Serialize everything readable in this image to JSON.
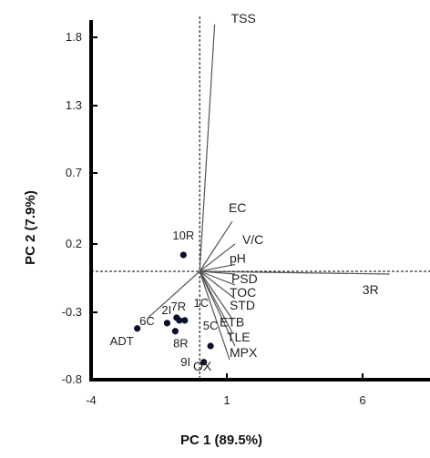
{
  "chart_data": {
    "type": "scatter",
    "title": "",
    "xlabel": "PC 1 (89.5%)",
    "ylabel": "PC 2 (7.9%)",
    "xlim": [
      -4,
      10
    ],
    "ylim": [
      -0.8,
      2.0
    ],
    "xticks": [
      -4,
      1,
      6
    ],
    "xtick_labels": [
      "-4",
      "1",
      "6"
    ],
    "yticks": [
      -0.8,
      -0.3,
      0.2,
      0.7,
      1.3,
      1.8
    ],
    "ytick_labels": [
      "-0.8",
      "-0.3",
      "0.2",
      "0.7",
      "1.3",
      "1.8"
    ],
    "grid": false,
    "reference_lines": {
      "x": 0,
      "y": 0
    },
    "points": [
      {
        "label": "10R",
        "x": -0.6,
        "y": 0.12
      },
      {
        "label": "7R",
        "x": -0.85,
        "y": -0.34
      },
      {
        "label": "2I",
        "x": -0.75,
        "y": -0.36
      },
      {
        "label": "6C",
        "x": -1.2,
        "y": -0.38
      },
      {
        "label": "1C",
        "x": -0.55,
        "y": -0.36
      },
      {
        "label": "8R",
        "x": -0.9,
        "y": -0.44
      },
      {
        "label": "ADT",
        "x": -2.3,
        "y": -0.42
      },
      {
        "label": "5C",
        "x": 0.4,
        "y": -0.55
      },
      {
        "label": "9I",
        "x": 0.15,
        "y": -0.67
      }
    ],
    "vectors": [
      {
        "label": "TSS",
        "x": 0.55,
        "y": 1.95
      },
      {
        "label": "EC",
        "x": 1.2,
        "y": 0.36
      },
      {
        "label": "V/C",
        "x": 1.3,
        "y": 0.2
      },
      {
        "label": "pH",
        "x": 1.3,
        "y": 0.05
      },
      {
        "label": "PSD",
        "x": 1.3,
        "y": -0.02
      },
      {
        "label": "3R",
        "x": 7.0,
        "y": -0.02
      },
      {
        "label": "TOC",
        "x": 1.3,
        "y": -0.1
      },
      {
        "label": "STD",
        "x": 1.3,
        "y": -0.2
      },
      {
        "label": "ETB",
        "x": 1.2,
        "y": -0.35
      },
      {
        "label": "TLE",
        "x": 1.2,
        "y": -0.45
      },
      {
        "label": "MPX",
        "x": 1.3,
        "y": -0.55
      },
      {
        "label": "OX",
        "x": 1.1,
        "y": -0.65
      },
      {
        "label": "",
        "x": -1.9,
        "y": -0.34
      }
    ],
    "point_color": "#0b0f2a",
    "vector_color": "#555555"
  }
}
